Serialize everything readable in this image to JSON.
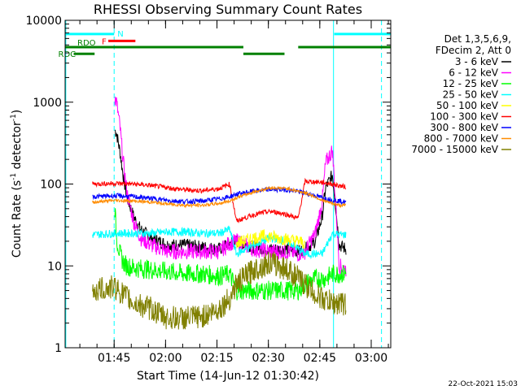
{
  "chart_data": {
    "type": "line",
    "title": "RHESSI Observing Summary Count Rates",
    "xlabel": "Start Time (14-Jun-12 01:30:42)",
    "ylabel": "Count Rate (s⁻¹ detector⁻¹)",
    "ylabel_main": "Count Rate (s",
    "ylabel_sup1": "-1",
    "ylabel_mid": " detector",
    "ylabel_sup2": "-1",
    "ylabel_end": ")",
    "y_scale": "log",
    "ylim": [
      1,
      10000
    ],
    "xlim_minutes": [
      0,
      95
    ],
    "x_ticks": [
      {
        "label": "01:45",
        "minute": 14.3
      },
      {
        "label": "02:00",
        "minute": 29.3
      },
      {
        "label": "02:15",
        "minute": 44.3
      },
      {
        "label": "02:30",
        "minute": 59.3
      },
      {
        "label": "02:45",
        "minute": 74.3
      },
      {
        "label": "03:00",
        "minute": 89.3
      }
    ],
    "y_ticks": [
      {
        "label": "1",
        "value": 1
      },
      {
        "label": "10",
        "value": 10
      },
      {
        "label": "100",
        "value": 100
      },
      {
        "label": "1000",
        "value": 1000
      },
      {
        "label": "10000",
        "value": 10000
      }
    ],
    "legend_header": [
      "Det 1,3,5,6,9,",
      "FDecim 2, Att 0"
    ],
    "legend_placement": "right",
    "series": [
      {
        "name": "3 - 6 keV",
        "color": "#000000",
        "x": [
          14.5,
          15,
          16,
          17,
          18,
          20,
          22,
          25,
          30,
          35,
          40,
          45,
          48,
          50,
          55,
          60,
          65,
          68,
          70,
          73,
          75,
          76,
          78,
          80,
          82
        ],
        "y": [
          450,
          420,
          250,
          120,
          70,
          40,
          28,
          22,
          18,
          18,
          17,
          16,
          19,
          20,
          17,
          16,
          16,
          15,
          16,
          20,
          40,
          90,
          130,
          18,
          16
        ]
      },
      {
        "name": "6 - 12 keV",
        "color": "#ff00ff",
        "x": [
          14.5,
          15,
          16,
          17,
          18,
          20,
          22,
          25,
          30,
          35,
          40,
          45,
          48,
          50,
          55,
          60,
          65,
          68,
          70,
          73,
          75,
          76,
          78,
          80,
          82
        ],
        "y": [
          1100,
          1000,
          500,
          180,
          80,
          35,
          22,
          18,
          15,
          15,
          15,
          15,
          19,
          20,
          16,
          15,
          15,
          14,
          15,
          25,
          60,
          180,
          260,
          10,
          9
        ]
      },
      {
        "name": "12 - 25 keV",
        "color": "#00ff00",
        "x": [
          14.5,
          15,
          16,
          17,
          18,
          20,
          25,
          30,
          35,
          40,
          45,
          48,
          50,
          55,
          60,
          65,
          68,
          70,
          73,
          75,
          76,
          78,
          80,
          82
        ],
        "y": [
          50,
          22,
          14,
          11,
          10,
          9.5,
          9,
          8.5,
          8,
          8,
          7.5,
          8,
          5,
          5,
          5,
          5,
          5,
          6,
          7,
          7,
          7,
          8,
          8,
          8
        ]
      },
      {
        "name": "25 - 50 keV",
        "color": "#00ffff",
        "x": [
          8,
          14.5,
          20,
          25,
          30,
          35,
          40,
          45,
          48,
          50,
          55,
          60,
          65,
          70,
          75,
          78,
          80,
          82
        ],
        "y": [
          24,
          25,
          25,
          25,
          26,
          26,
          25,
          25,
          28,
          14,
          18,
          22,
          20,
          14,
          14,
          25,
          24,
          24
        ]
      },
      {
        "name": "50 - 100 keV",
        "color": "#ffff00",
        "x": [
          50,
          52,
          55,
          58,
          60,
          62,
          65,
          68,
          70
        ],
        "y": [
          19,
          20,
          22,
          23,
          23,
          22,
          21,
          20,
          19
        ]
      },
      {
        "name": "100 - 300 keV",
        "color": "#ff0000",
        "x": [
          8,
          14.5,
          20,
          25,
          30,
          35,
          40,
          45,
          48,
          50,
          52,
          55,
          58,
          60,
          62,
          65,
          68,
          70,
          75,
          78,
          80,
          82
        ],
        "y": [
          100,
          102,
          100,
          96,
          90,
          85,
          83,
          88,
          100,
          35,
          38,
          42,
          45,
          46,
          45,
          42,
          38,
          108,
          105,
          100,
          95,
          92
        ]
      },
      {
        "name": "300 - 800 keV",
        "color": "#0000ff",
        "x": [
          8,
          14.5,
          20,
          25,
          30,
          35,
          40,
          45,
          48,
          50,
          55,
          60,
          65,
          70,
          73,
          75,
          78,
          80,
          82
        ],
        "y": [
          70,
          72,
          70,
          67,
          63,
          61,
          62,
          66,
          70,
          75,
          82,
          86,
          85,
          78,
          72,
          68,
          64,
          62,
          60
        ]
      },
      {
        "name": "800 - 7000 keV",
        "color": "#ff8c00",
        "x": [
          8,
          14.5,
          20,
          25,
          30,
          35,
          40,
          45,
          48,
          50,
          55,
          60,
          65,
          70,
          73,
          75,
          78,
          80,
          82
        ],
        "y": [
          60,
          63,
          62,
          60,
          57,
          55,
          55,
          58,
          62,
          68,
          80,
          90,
          88,
          78,
          70,
          63,
          58,
          55,
          55
        ]
      },
      {
        "name": "7000 - 15000 keV",
        "color": "#808000",
        "x": [
          8,
          14.5,
          20,
          25,
          28,
          30,
          35,
          40,
          45,
          48,
          50,
          55,
          60,
          65,
          70,
          73,
          75,
          78,
          80,
          82
        ],
        "y": [
          5,
          5.5,
          3.5,
          3,
          2.5,
          2.3,
          2.3,
          2.4,
          3,
          4,
          6,
          9,
          11,
          9,
          6,
          4.5,
          4,
          3.5,
          3.5,
          3.5
        ]
      }
    ],
    "flag_bars": [
      {
        "label": "N",
        "color": "#00ffff",
        "level": 6800,
        "segments": [
          [
            0,
            14.3
          ],
          [
            78.5,
            95
          ]
        ]
      },
      {
        "label": "F",
        "color": "#ff0000",
        "level": 5600,
        "segments": [
          [
            12.6,
            20.5
          ]
        ]
      },
      {
        "label": "RDO",
        "color": "#008000",
        "level": 4700,
        "segments": [
          [
            0,
            52
          ],
          [
            68,
            95
          ]
        ]
      },
      {
        "label": "RDC",
        "color": "#008000",
        "level": 3900,
        "segments": [
          [
            2.5,
            8.6
          ],
          [
            52,
            64
          ]
        ]
      }
    ],
    "vlines": [
      {
        "minute": 0.2,
        "color": "#00ffff",
        "style": "solid"
      },
      {
        "minute": 14.3,
        "color": "#00ffff",
        "style": "dashed"
      },
      {
        "minute": 78.3,
        "color": "#00ffff",
        "style": "solid"
      },
      {
        "minute": 92.3,
        "color": "#00ffff",
        "style": "dashed"
      }
    ]
  },
  "footer": {
    "timestamp": "22-Oct-2021 15:03"
  }
}
